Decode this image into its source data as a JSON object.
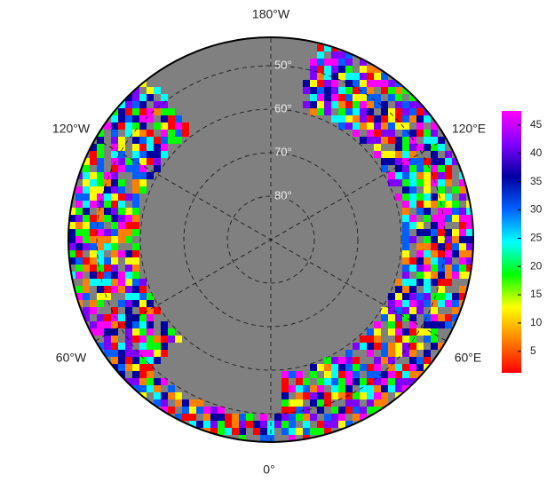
{
  "map": {
    "longitude_labels": [
      "180°W",
      "120°E",
      "60°E",
      "0°",
      "60°W",
      "120°W"
    ],
    "latitude_labels": [
      "50°",
      "60°",
      "70°",
      "80°"
    ],
    "colorbar": {
      "range": [
        1.2,
        47.5
      ],
      "ticks": [
        5,
        10,
        15,
        20,
        25,
        30,
        35,
        40,
        45
      ],
      "colormap": [
        "#ff0000",
        "#ff8000",
        "#ffff00",
        "#00ff00",
        "#00ffff",
        "#0060ff",
        "#0000a0",
        "#8000ff",
        "#ff00ff"
      ]
    }
  }
}
